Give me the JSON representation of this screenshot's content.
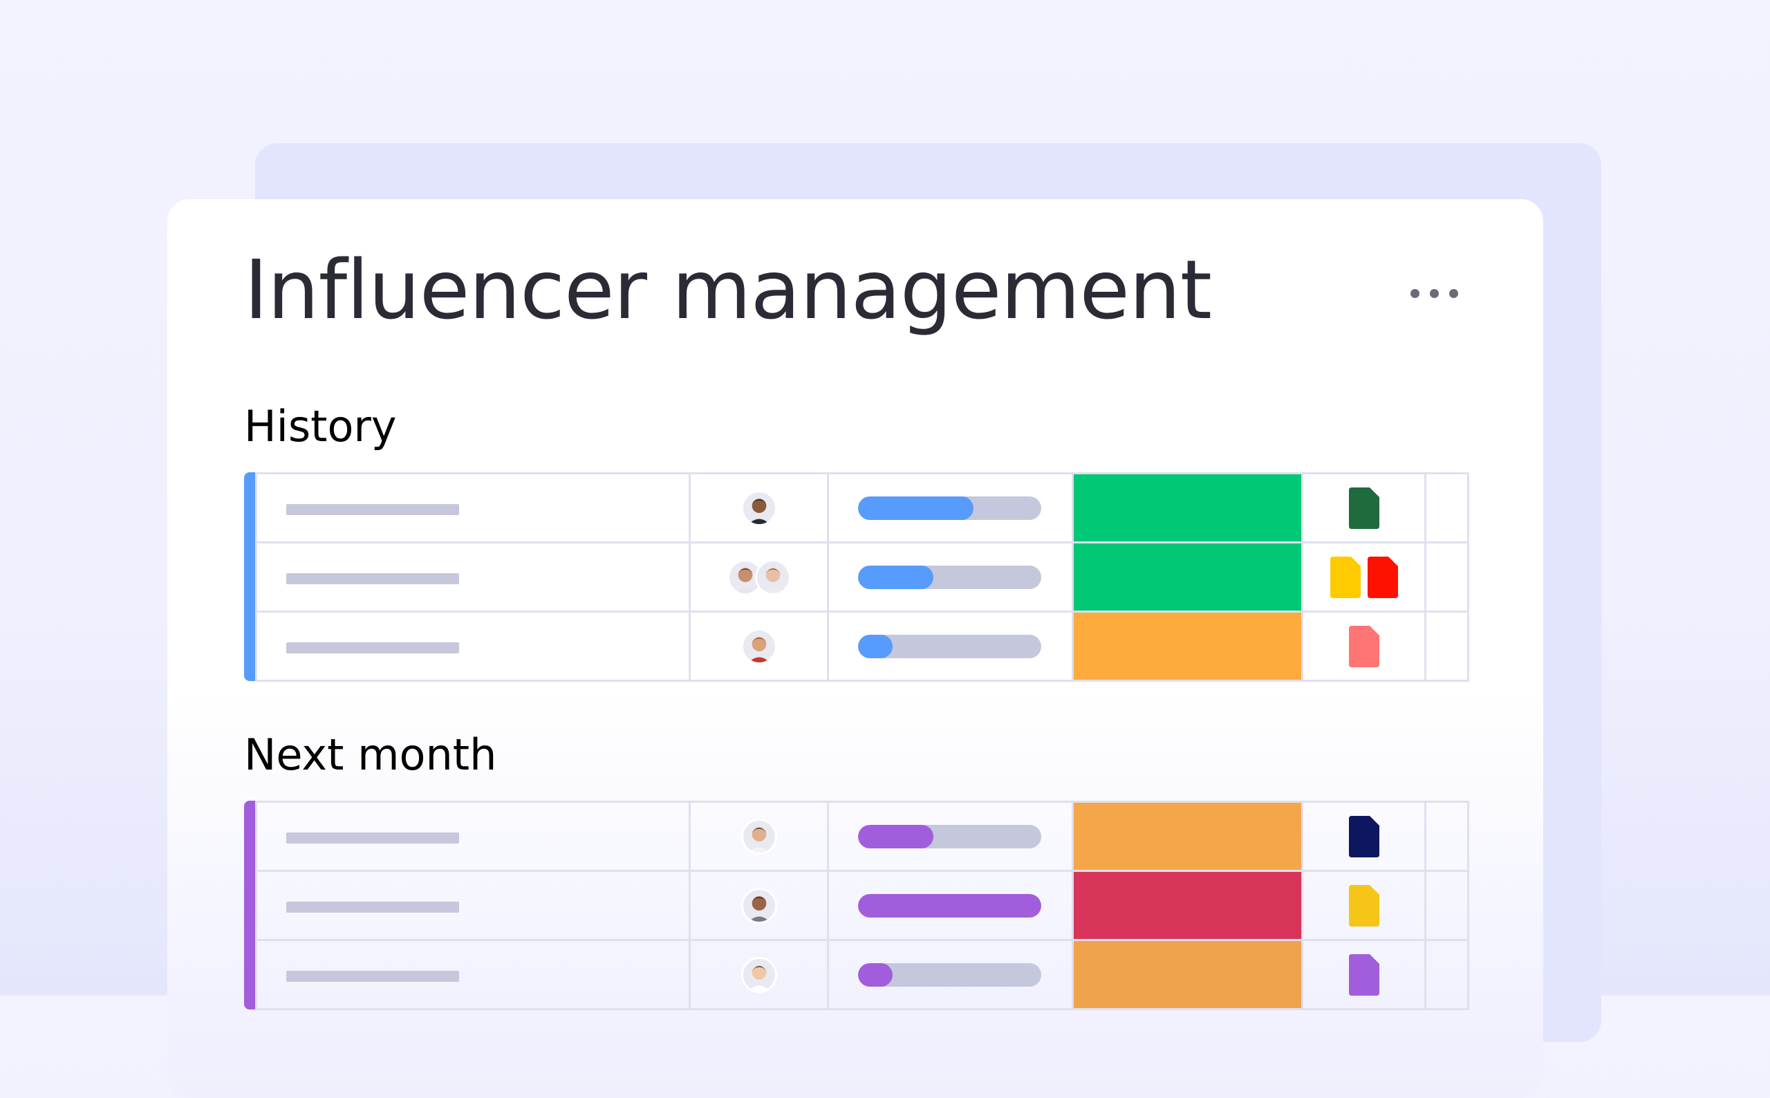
{
  "title": "Influencer management",
  "menu_icon": "more-horizontal-icon",
  "groups": [
    {
      "label": "History",
      "color": "#579bfc",
      "rows": [
        {
          "avatars": [
            {
              "skin": "#8a5a3c",
              "hair": "#1e1410",
              "shirt": "#2a2a2a"
            }
          ],
          "progress": 0.63,
          "status_color": "#00c875",
          "files": [
            {
              "color": "#1f6b3d"
            }
          ]
        },
        {
          "avatars": [
            {
              "skin": "#c69070",
              "hair": "#2b1b12",
              "shirt": "#e6e6ea"
            },
            {
              "skin": "#e8c0a6",
              "hair": "#6a3b22",
              "shirt": "#f0ecee"
            }
          ],
          "progress": 0.41,
          "status_color": "#00c875",
          "files": [
            {
              "color": "#ffcb00"
            },
            {
              "color": "#ff1100"
            }
          ]
        },
        {
          "avatars": [
            {
              "skin": "#d8a27a",
              "hair": "#7a3f1e",
              "shirt": "#c0392b"
            }
          ],
          "progress": 0.19,
          "status_color": "#fdab3d",
          "files": [
            {
              "color": "#ff7575"
            }
          ]
        }
      ]
    },
    {
      "label": "Next month",
      "color": "#a25ddc",
      "rows": [
        {
          "avatars": [
            {
              "skin": "#e0b08e",
              "hair": "#1a1a1a",
              "shirt": "#f4f4f6"
            }
          ],
          "progress": 0.41,
          "status_color": "#f5a54a",
          "files": [
            {
              "color": "#0f1660"
            }
          ]
        },
        {
          "avatars": [
            {
              "skin": "#9a6446",
              "hair": "#2a1810",
              "shirt": "#7a7a84"
            }
          ],
          "progress": 1.0,
          "status_color": "#d8345a",
          "files": [
            {
              "color": "#f5c518"
            }
          ]
        },
        {
          "avatars": [
            {
              "skin": "#f0c8a8",
              "hair": "#1a1a1a",
              "shirt": "#ffffff"
            }
          ],
          "progress": 0.19,
          "status_color": "#f0a24c",
          "files": [
            {
              "color": "#a25ddc"
            }
          ]
        }
      ]
    }
  ]
}
